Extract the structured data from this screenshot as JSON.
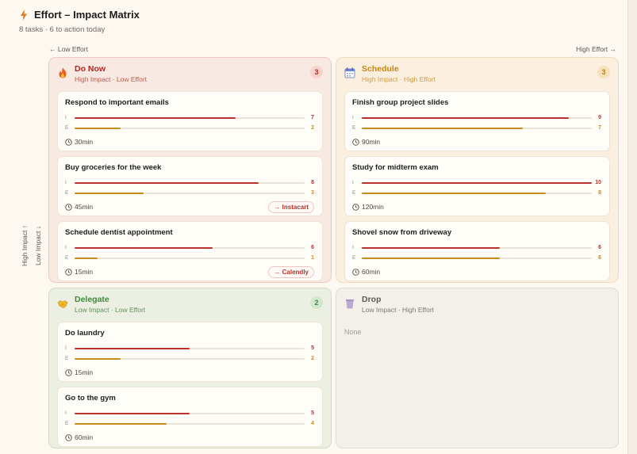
{
  "header": {
    "title": "Effort – Impact Matrix",
    "subtitle": "8 tasks · 6 to action today"
  },
  "axes": {
    "low_effort": "← Low Effort",
    "high_effort": "High Effort →",
    "high_impact": "High Impact ↑",
    "low_impact": "Low Impact ↓"
  },
  "labels": {
    "impact": "I",
    "effort": "E"
  },
  "colors": {
    "impact": "#b8322b",
    "effort": "#c98c1b"
  },
  "scale_max": 10,
  "quadrants": {
    "do_now": {
      "name": "Do Now",
      "sub": "High Impact · Low Effort",
      "count": "3",
      "icon": "fire-icon",
      "tasks": [
        {
          "title": "Respond to important emails",
          "impact": 7,
          "effort": 2,
          "time": "30min"
        },
        {
          "title": "Buy groceries for the week",
          "impact": 8,
          "effort": 3,
          "time": "45min",
          "link": "→ Instacart"
        },
        {
          "title": "Schedule dentist appointment",
          "impact": 6,
          "effort": 1,
          "time": "15min",
          "link": "→ Calendly"
        }
      ]
    },
    "schedule": {
      "name": "Schedule",
      "sub": "High Impact · High Effort",
      "count": "3",
      "icon": "calendar-icon",
      "tasks": [
        {
          "title": "Finish group project slides",
          "impact": 9,
          "effort": 7,
          "time": "90min"
        },
        {
          "title": "Study for midterm exam",
          "impact": 10,
          "effort": 8,
          "time": "120min"
        },
        {
          "title": "Shovel snow from driveway",
          "impact": 6,
          "effort": 6,
          "time": "60min"
        }
      ]
    },
    "delegate": {
      "name": "Delegate",
      "sub": "Low Impact · Low Effort",
      "count": "2",
      "icon": "handshake-icon",
      "tasks": [
        {
          "title": "Do laundry",
          "impact": 5,
          "effort": 2,
          "time": "15min"
        },
        {
          "title": "Go to the gym",
          "impact": 5,
          "effort": 4,
          "time": "60min"
        }
      ]
    },
    "drop": {
      "name": "Drop",
      "sub": "Low Impact · High Effort",
      "icon": "trash-icon",
      "empty": "None"
    }
  }
}
